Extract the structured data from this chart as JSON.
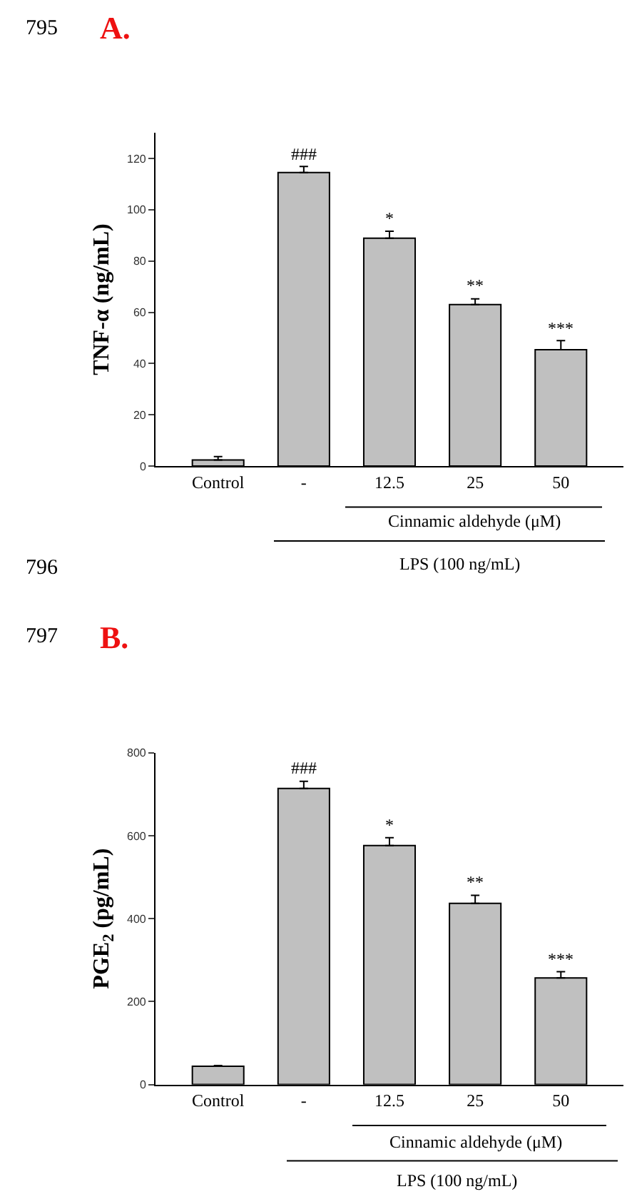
{
  "chart_data": [
    {
      "type": "bar",
      "title": "A.",
      "ylabel": "TNF-α (ng/mL)",
      "categories": [
        "Control",
        "-",
        "12.5",
        "25",
        "50"
      ],
      "values": [
        2.4,
        114.5,
        88.9,
        63,
        45.4
      ],
      "errors": [
        1.3,
        2.4,
        2.7,
        2.2,
        3.5
      ],
      "color": "#c0c0c0",
      "ylim": [
        0,
        130
      ],
      "yticks": [
        0,
        20,
        40,
        60,
        80,
        100,
        120
      ],
      "annotations": [
        {
          "text": "###",
          "x": "-",
          "y": 116.9
        },
        {
          "text": "*",
          "x": "12.5",
          "y": 91.6
        },
        {
          "text": "**",
          "x": "25",
          "y": 65.2
        },
        {
          "text": "***",
          "x": "50",
          "y": 48.9
        },
        "795",
        "Cinnamic aldehyde (μM)",
        "LPS (100 ng/mL)",
        "796"
      ]
    },
    {
      "type": "bar",
      "title": "B.",
      "ylabel": "PGE$_{2}$ (pg/mL)",
      "categories": [
        "Control",
        "-",
        "12.5",
        "25",
        "50"
      ],
      "values": [
        44,
        714,
        576,
        437,
        257
      ],
      "errors": [
        2,
        17,
        19,
        19,
        15
      ],
      "color": "#c0c0c0",
      "ylim": [
        0,
        800
      ],
      "yticks": [
        0,
        200,
        400,
        600,
        800
      ],
      "annotations": [
        {
          "text": "###",
          "x": "-",
          "y": 731
        },
        {
          "text": "*",
          "x": "12.5",
          "y": 595
        },
        {
          "text": "**",
          "x": "25",
          "y": 456
        },
        {
          "text": "***",
          "x": "50",
          "y": 272
        },
        "797",
        "Cinnamic aldehyde (μM)",
        "LPS (100 ng/mL)"
      ]
    }
  ]
}
